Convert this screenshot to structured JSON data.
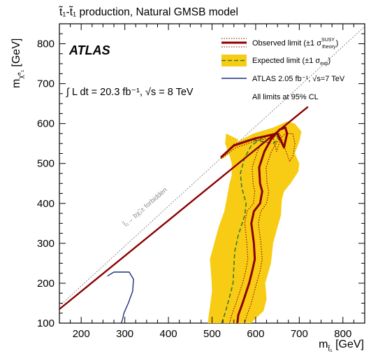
{
  "figure_title": "t̃₁-t̃₁ production, Natural GMSB model",
  "atlas_label": "ATLAS",
  "lumi_text": "∫ L dt = 20.3 fb⁻¹,  √s = 8 TeV",
  "forbidden_label": "t̃₁→ bχ̃₁± forbidden",
  "legend_note": "All limits at 95% CL",
  "colors": {
    "observed": "#8b0000",
    "expected_band": "#f8cc14",
    "expected_line": "#3a7a2a",
    "previous": "#1f2f7a",
    "diagonal": "#8c8c8c"
  },
  "chart_data": {
    "type": "line",
    "title": "t̃₁-t̃₁ production, Natural GMSB model",
    "xlabel": "m_t̃₁ [GeV]",
    "ylabel": "m_χ̃⁰₁ [GeV]",
    "xlim": [
      150,
      850
    ],
    "ylim": [
      100,
      850
    ],
    "x_ticks": [
      200,
      300,
      400,
      500,
      600,
      700,
      800
    ],
    "y_ticks": [
      100,
      200,
      300,
      400,
      500,
      600,
      700,
      800
    ],
    "legend_position": "top-right",
    "series": [
      {
        "name": "Observed limit (±1 σ_theory^SUSY)",
        "style": "solid-thick",
        "x": [
          558,
          560,
          570,
          585,
          592,
          598,
          596,
          590,
          596,
          610,
          615,
          610,
          608,
          620,
          635,
          655,
          668,
          672,
          665,
          650,
          600,
          550,
          520
        ],
        "y": [
          100,
          120,
          150,
          200,
          230,
          260,
          300,
          350,
          380,
          400,
          430,
          450,
          490,
          530,
          560,
          585,
          590,
          575,
          540,
          575,
          563,
          545,
          515
        ]
      },
      {
        "name": "Observed limit (+1 σ_theory^SUSY)",
        "style": "dotted",
        "x": [
          575,
          580,
          590,
          602,
          610,
          615,
          612,
          606,
          612,
          625,
          630,
          626,
          624,
          636,
          650,
          668,
          685,
          690,
          686,
          678,
          655,
          600,
          550,
          522
        ],
        "y": [
          100,
          120,
          150,
          200,
          230,
          260,
          300,
          350,
          380,
          400,
          430,
          450,
          490,
          530,
          555,
          575,
          575,
          550,
          520,
          505,
          575,
          565,
          548,
          517
        ]
      },
      {
        "name": "Observed limit (-1 σ_theory^SUSY)",
        "style": "dotted",
        "x": [
          540,
          545,
          555,
          570,
          577,
          582,
          580,
          575,
          580,
          595,
          598,
          594,
          592,
          604,
          620,
          640,
          652,
          655,
          648,
          640,
          605,
          555,
          520
        ],
        "y": [
          100,
          120,
          150,
          200,
          230,
          260,
          300,
          350,
          380,
          400,
          430,
          450,
          490,
          530,
          565,
          575,
          570,
          555,
          530,
          565,
          558,
          540,
          512
        ]
      },
      {
        "name": "Expected limit (±1 σ_exp)",
        "style": "dashed",
        "x": [
          522,
          530,
          540,
          548,
          550,
          552,
          560,
          575,
          578,
          568,
          565,
          575,
          590,
          610,
          625,
          648,
          652,
          640,
          590,
          550,
          520
        ],
        "y": [
          100,
          125,
          165,
          200,
          240,
          280,
          320,
          370,
          400,
          440,
          475,
          515,
          545,
          560,
          568,
          572,
          560,
          550,
          560,
          545,
          515
        ]
      },
      {
        "name": "Expected limit ±1σ band (upper edge)",
        "style": "band",
        "x": [
          520,
          525,
          560,
          595,
          640,
          672,
          690,
          705,
          700,
          690,
          700,
          698,
          680,
          665,
          660,
          658,
          650,
          640,
          635,
          622,
          625,
          618,
          598,
          590
        ],
        "y": [
          510,
          520,
          555,
          575,
          590,
          605,
          600,
          580,
          555,
          525,
          500,
          480,
          450,
          430,
          410,
          370,
          340,
          300,
          250,
          200,
          160,
          130,
          110,
          100
        ]
      },
      {
        "name": "Expected limit ±1σ band (lower edge)",
        "style": "band",
        "x": [
          490,
          495,
          500,
          498,
          495,
          505,
          515,
          528,
          535,
          540,
          545,
          545,
          540,
          530,
          532,
          560,
          555,
          540,
          528,
          520
        ],
        "y": [
          100,
          140,
          180,
          220,
          260,
          300,
          340,
          380,
          420,
          450,
          470,
          500,
          520,
          550,
          575,
          560,
          540,
          525,
          515,
          510
        ]
      },
      {
        "name": "ATLAS 2.05 fb⁻¹, √s=7 TeV",
        "style": "solid-thin",
        "x": [
          260,
          275,
          310,
          320,
          318,
          308,
          298,
          295,
          292
        ],
        "y": [
          218,
          228,
          228,
          210,
          180,
          150,
          125,
          110,
          100
        ]
      },
      {
        "name": "",
        "style": "kinematic-diagonal",
        "x": [
          150,
          720
        ],
        "y": [
          135,
          642
        ]
      },
      {
        "name": "",
        "style": "forbidden-boundary-dotted",
        "x": [
          150,
          850
        ],
        "y": [
          143,
          843
        ]
      }
    ]
  }
}
